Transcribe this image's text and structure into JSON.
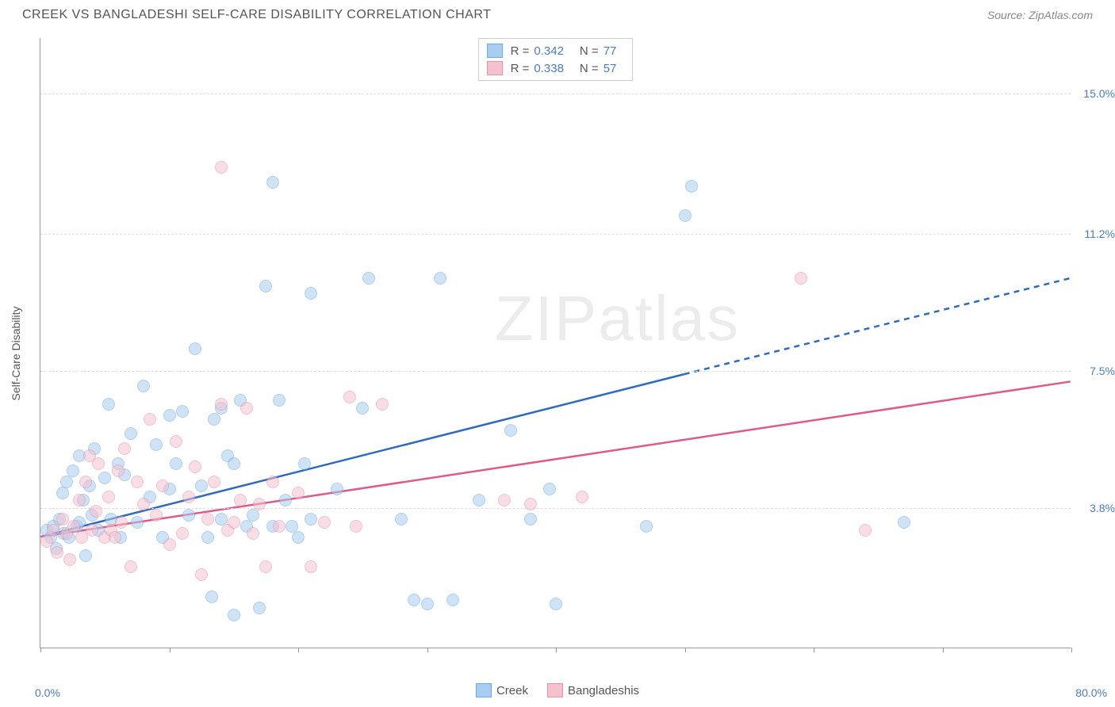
{
  "header": {
    "title": "CREEK VS BANGLADESHI SELF-CARE DISABILITY CORRELATION CHART",
    "source_label": "Source: ZipAtlas.com"
  },
  "watermark": {
    "zip": "ZIP",
    "atlas": "atlas"
  },
  "chart": {
    "type": "scatter",
    "y_axis_label": "Self-Care Disability",
    "x_min_label": "0.0%",
    "x_max_label": "80.0%",
    "xlim": [
      0,
      80
    ],
    "ylim": [
      0,
      16.5
    ],
    "x_ticks": [
      0,
      10,
      20,
      30,
      40,
      50,
      60,
      70,
      80
    ],
    "y_gridlines": [
      {
        "value": 3.8,
        "label": "3.8%"
      },
      {
        "value": 7.5,
        "label": "7.5%"
      },
      {
        "value": 11.2,
        "label": "11.2%"
      },
      {
        "value": 15.0,
        "label": "15.0%"
      }
    ],
    "background_color": "#ffffff",
    "grid_color": "#dddddd",
    "axis_color": "#999999",
    "tick_label_color": "#4a7bc8",
    "marker_radius": 8,
    "marker_opacity": 0.55,
    "trend_stroke_width": 2.5,
    "series": [
      {
        "name": "Creek",
        "color_fill": "#a9cdf0",
        "color_stroke": "#6ea8e0",
        "trend_color": "#2e6bc0",
        "R": "0.342",
        "N": "77",
        "trend": {
          "x1": 0,
          "y1": 3.0,
          "x2": 50,
          "y2": 7.4,
          "x2_dash": 80,
          "y2_dash": 10.0
        },
        "points": [
          [
            0.5,
            3.2
          ],
          [
            0.8,
            3.0
          ],
          [
            1.0,
            3.3
          ],
          [
            1.2,
            2.7
          ],
          [
            1.5,
            3.5
          ],
          [
            1.7,
            4.2
          ],
          [
            1.8,
            3.1
          ],
          [
            2.0,
            4.5
          ],
          [
            2.2,
            3.0
          ],
          [
            2.5,
            4.8
          ],
          [
            2.8,
            3.3
          ],
          [
            3.0,
            5.2
          ],
          [
            3.0,
            3.4
          ],
          [
            3.3,
            4.0
          ],
          [
            3.5,
            2.5
          ],
          [
            3.8,
            4.4
          ],
          [
            4.0,
            3.6
          ],
          [
            4.2,
            5.4
          ],
          [
            4.5,
            3.2
          ],
          [
            5.0,
            4.6
          ],
          [
            5.3,
            6.6
          ],
          [
            5.5,
            3.5
          ],
          [
            6.0,
            5.0
          ],
          [
            6.2,
            3.0
          ],
          [
            6.5,
            4.7
          ],
          [
            7.0,
            5.8
          ],
          [
            7.5,
            3.4
          ],
          [
            8.0,
            7.1
          ],
          [
            8.5,
            4.1
          ],
          [
            9.0,
            5.5
          ],
          [
            9.5,
            3.0
          ],
          [
            10.0,
            6.3
          ],
          [
            10.0,
            4.3
          ],
          [
            10.5,
            5.0
          ],
          [
            11.0,
            6.4
          ],
          [
            11.5,
            3.6
          ],
          [
            12.0,
            8.1
          ],
          [
            12.5,
            4.4
          ],
          [
            13.0,
            3.0
          ],
          [
            13.3,
            1.4
          ],
          [
            13.5,
            6.2
          ],
          [
            14.0,
            3.5
          ],
          [
            14.0,
            6.5
          ],
          [
            14.5,
            5.2
          ],
          [
            15.0,
            0.9
          ],
          [
            15.0,
            5.0
          ],
          [
            15.5,
            6.7
          ],
          [
            16.0,
            3.3
          ],
          [
            16.5,
            3.6
          ],
          [
            17.0,
            1.1
          ],
          [
            17.5,
            9.8
          ],
          [
            18.0,
            12.6
          ],
          [
            18.0,
            3.3
          ],
          [
            18.5,
            6.7
          ],
          [
            19.0,
            4.0
          ],
          [
            19.5,
            3.3
          ],
          [
            20.0,
            3.0
          ],
          [
            20.5,
            5.0
          ],
          [
            21.0,
            9.6
          ],
          [
            21.0,
            3.5
          ],
          [
            23.0,
            4.3
          ],
          [
            25.0,
            6.5
          ],
          [
            25.5,
            10.0
          ],
          [
            28.0,
            3.5
          ],
          [
            29.0,
            1.3
          ],
          [
            30.0,
            1.2
          ],
          [
            31.0,
            10.0
          ],
          [
            32.0,
            1.3
          ],
          [
            34.0,
            4.0
          ],
          [
            36.5,
            5.9
          ],
          [
            38.0,
            3.5
          ],
          [
            39.5,
            4.3
          ],
          [
            40.0,
            1.2
          ],
          [
            47.0,
            3.3
          ],
          [
            50.0,
            11.7
          ],
          [
            50.5,
            12.5
          ],
          [
            67.0,
            3.4
          ]
        ]
      },
      {
        "name": "Bangladeshis",
        "color_fill": "#f3c2cf",
        "color_stroke": "#e890ac",
        "trend_color": "#e05a86",
        "R": "0.338",
        "N": "57",
        "trend": {
          "x1": 0,
          "y1": 3.0,
          "x2": 80,
          "y2": 7.2,
          "x2_dash": 80,
          "y2_dash": 7.2
        },
        "points": [
          [
            0.5,
            2.9
          ],
          [
            1.0,
            3.2
          ],
          [
            1.3,
            2.6
          ],
          [
            1.7,
            3.5
          ],
          [
            2.0,
            3.1
          ],
          [
            2.3,
            2.4
          ],
          [
            2.6,
            3.3
          ],
          [
            3.0,
            4.0
          ],
          [
            3.2,
            3.0
          ],
          [
            3.5,
            4.5
          ],
          [
            3.8,
            5.2
          ],
          [
            4.0,
            3.2
          ],
          [
            4.3,
            3.7
          ],
          [
            4.5,
            5.0
          ],
          [
            5.0,
            3.0
          ],
          [
            5.3,
            4.1
          ],
          [
            5.5,
            3.2
          ],
          [
            6.0,
            4.8
          ],
          [
            6.3,
            3.4
          ],
          [
            6.5,
            5.4
          ],
          [
            7.0,
            2.2
          ],
          [
            7.5,
            4.5
          ],
          [
            8.0,
            3.9
          ],
          [
            8.5,
            6.2
          ],
          [
            9.0,
            3.6
          ],
          [
            9.5,
            4.4
          ],
          [
            10.0,
            2.8
          ],
          [
            10.5,
            5.6
          ],
          [
            11.0,
            3.1
          ],
          [
            11.5,
            4.1
          ],
          [
            12.0,
            4.9
          ],
          [
            12.5,
            2.0
          ],
          [
            13.0,
            3.5
          ],
          [
            13.5,
            4.5
          ],
          [
            14.0,
            13.0
          ],
          [
            14.0,
            6.6
          ],
          [
            14.5,
            3.2
          ],
          [
            15.0,
            3.4
          ],
          [
            15.5,
            4.0
          ],
          [
            16.0,
            6.5
          ],
          [
            16.5,
            3.1
          ],
          [
            17.0,
            3.9
          ],
          [
            17.5,
            2.2
          ],
          [
            18.0,
            4.5
          ],
          [
            18.5,
            3.3
          ],
          [
            20.0,
            4.2
          ],
          [
            21.0,
            2.2
          ],
          [
            22.0,
            3.4
          ],
          [
            24.0,
            6.8
          ],
          [
            26.5,
            6.6
          ],
          [
            36.0,
            4.0
          ],
          [
            38.0,
            3.9
          ],
          [
            42.0,
            4.1
          ],
          [
            59.0,
            10.0
          ],
          [
            64.0,
            3.2
          ],
          [
            24.5,
            3.3
          ],
          [
            5.8,
            3.0
          ]
        ]
      }
    ]
  },
  "legend_top_labels": {
    "R": "R =",
    "N": "N ="
  },
  "legend_bottom": {
    "creek": "Creek",
    "bangladeshis": "Bangladeshis"
  }
}
